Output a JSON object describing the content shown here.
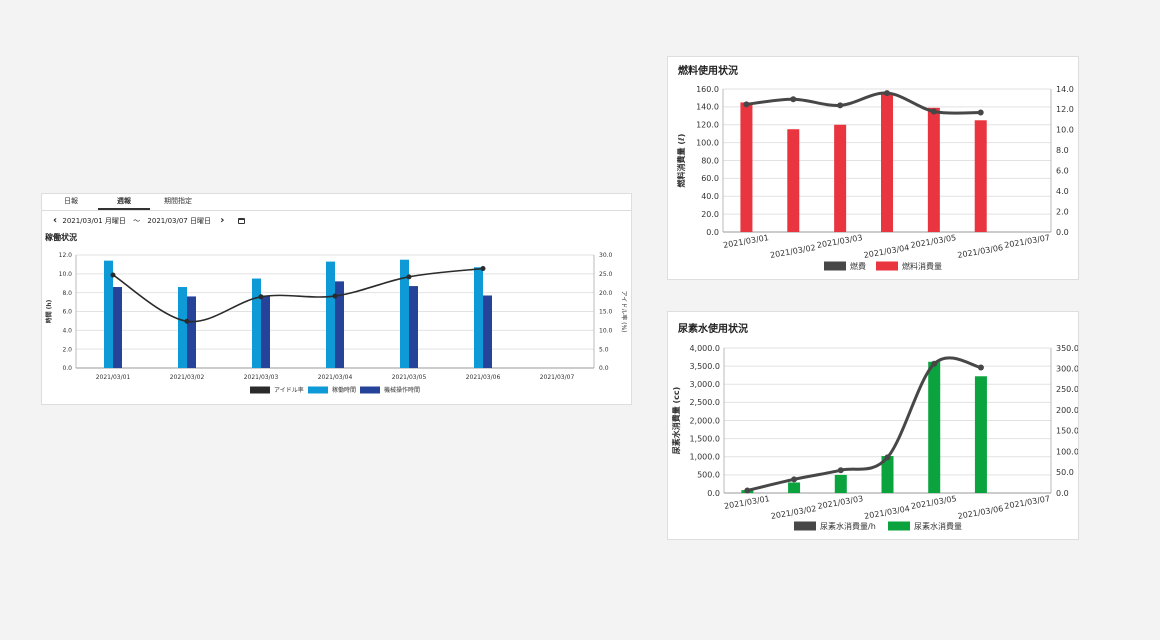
{
  "tabs": [
    {
      "label": "日報",
      "active": false
    },
    {
      "label": "週報",
      "active": true
    },
    {
      "label": "期間指定",
      "active": false
    }
  ],
  "date_range": {
    "start": "2021/03/01 月曜日",
    "separator": "〜",
    "end": "2021/03/07 日曜日"
  },
  "chart_data": [
    {
      "type": "bar",
      "title": "稼働状況",
      "categories": [
        "2021/03/01",
        "2021/03/02",
        "2021/03/03",
        "2021/03/04",
        "2021/03/05",
        "2021/03/06",
        "2021/03/07"
      ],
      "ylabel": "時間 (h)",
      "y2label": "アイドル率 (%)",
      "ylim": [
        0,
        12
      ],
      "y2lim": [
        0,
        30
      ],
      "yticks": [
        "0.0",
        "2.0",
        "4.0",
        "6.0",
        "8.0",
        "10.0",
        "12.0"
      ],
      "y2ticks": [
        "0.0",
        "5.0",
        "10.0",
        "15.0",
        "20.0",
        "25.0",
        "30.0"
      ],
      "series": [
        {
          "name": "アイドル率",
          "kind": "line",
          "axis": "right",
          "color": "#2b2b2b",
          "values": [
            24.7,
            12.4,
            18.9,
            19.1,
            24.2,
            26.4,
            null
          ]
        },
        {
          "name": "稼働時間",
          "kind": "bar",
          "axis": "left",
          "color": "#0e9ad7",
          "values": [
            11.4,
            8.6,
            9.5,
            11.3,
            11.5,
            10.7,
            null
          ]
        },
        {
          "name": "機械操作時間",
          "kind": "bar",
          "axis": "left",
          "color": "#26439a",
          "values": [
            8.6,
            7.6,
            7.7,
            9.2,
            8.7,
            7.7,
            null
          ]
        }
      ],
      "grid": true,
      "legend": "bottom"
    },
    {
      "type": "bar",
      "title": "燃料使用状況",
      "categories": [
        "2021/03/01",
        "2021/03/02",
        "2021/03/03",
        "2021/03/04",
        "2021/03/05",
        "2021/03/06",
        "2021/03/07"
      ],
      "ylabel": "燃料消費量 (ℓ)",
      "ylim": [
        0,
        160
      ],
      "y2lim": [
        0,
        14
      ],
      "yticks": [
        "0.0",
        "20.0",
        "40.0",
        "60.0",
        "80.0",
        "100.0",
        "120.0",
        "140.0",
        "160.0"
      ],
      "y2ticks": [
        "0.0",
        "2.0",
        "4.0",
        "6.0",
        "8.0",
        "10.0",
        "12.0",
        "14.0"
      ],
      "series": [
        {
          "name": "燃費",
          "kind": "line",
          "axis": "right",
          "color": "#474747",
          "values": [
            12.5,
            13.0,
            12.4,
            13.6,
            11.8,
            11.7,
            null
          ]
        },
        {
          "name": "燃料消費量",
          "kind": "bar",
          "axis": "left",
          "color": "#e8353f",
          "values": [
            145,
            115,
            120,
            155,
            139,
            125,
            null
          ]
        }
      ],
      "grid": true,
      "legend": "bottom"
    },
    {
      "type": "bar",
      "title": "尿素水使用状況",
      "categories": [
        "2021/03/01",
        "2021/03/02",
        "2021/03/03",
        "2021/03/04",
        "2021/03/05",
        "2021/03/06",
        "2021/03/07"
      ],
      "ylabel": "尿素水消費量 (cc)",
      "ylim": [
        0,
        4000
      ],
      "y2lim": [
        0,
        350
      ],
      "yticks": [
        "0.0",
        "500.0",
        "1,000.0",
        "1,500.0",
        "2,000.0",
        "2,500.0",
        "3,000.0",
        "3,500.0",
        "4,000.0"
      ],
      "y2ticks": [
        "0.0",
        "50.0",
        "100.0",
        "150.0",
        "200.0",
        "250.0",
        "300.0",
        "350.0"
      ],
      "series": [
        {
          "name": "尿素水消費量/h",
          "kind": "line",
          "axis": "right",
          "color": "#474747",
          "values": [
            6,
            33,
            55,
            86,
            312,
            303,
            null
          ]
        },
        {
          "name": "尿素水消費量",
          "kind": "bar",
          "axis": "left",
          "color": "#0aa33e",
          "values": [
            80,
            290,
            500,
            1020,
            3620,
            3220,
            null
          ]
        }
      ],
      "grid": true,
      "legend": "bottom"
    }
  ]
}
